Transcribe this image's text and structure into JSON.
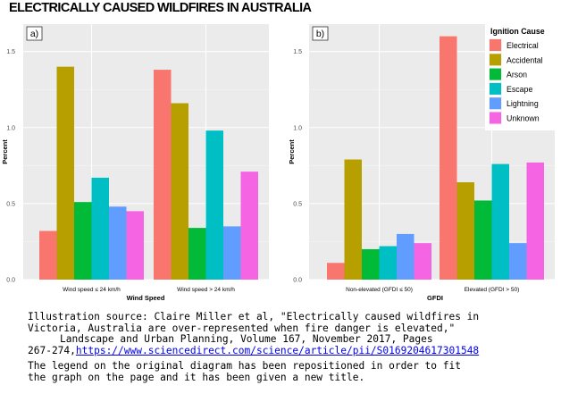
{
  "page": {
    "title": "ELECTRICALLY CAUSED WILDFIRES IN AUSTRALIA"
  },
  "legend": {
    "title": "Ignition Cause",
    "placement": "top-right"
  },
  "chart_data": [
    {
      "type": "bar",
      "panel_label": "a)",
      "title": "",
      "xlabel": "Wind Speed",
      "ylabel": "Percent",
      "ylim": [
        0,
        1.6
      ],
      "yticks": [
        "0.0",
        "0.5",
        "1.0",
        "1.5"
      ],
      "grid": true,
      "categories": [
        "Wind speed ≤ 24 km/h",
        "Wind speed > 24 km/h"
      ],
      "series": [
        {
          "name": "Electrical",
          "color": "#F8766D",
          "values": [
            0.32,
            1.38
          ]
        },
        {
          "name": "Accidental",
          "color": "#B79F00",
          "values": [
            1.4,
            1.16
          ]
        },
        {
          "name": "Arson",
          "color": "#00BA38",
          "values": [
            0.51,
            0.34
          ]
        },
        {
          "name": "Escape",
          "color": "#00BFC4",
          "values": [
            0.67,
            0.98
          ]
        },
        {
          "name": "Lightning",
          "color": "#619CFF",
          "values": [
            0.48,
            0.35
          ]
        },
        {
          "name": "Unknown",
          "color": "#F564E3",
          "values": [
            0.45,
            0.71
          ]
        }
      ]
    },
    {
      "type": "bar",
      "panel_label": "b)",
      "title": "",
      "xlabel": "GFDI",
      "ylabel": "Percent",
      "ylim": [
        0,
        1.6
      ],
      "yticks": [
        "0.0",
        "0.5",
        "1.0",
        "1.5"
      ],
      "grid": true,
      "categories": [
        "Non-elevated (GFDI ≤ 50)",
        "Elevated (GFDI > 50)"
      ],
      "series": [
        {
          "name": "Electrical",
          "color": "#F8766D",
          "values": [
            0.11,
            1.6
          ]
        },
        {
          "name": "Accidental",
          "color": "#B79F00",
          "values": [
            0.79,
            0.64
          ]
        },
        {
          "name": "Arson",
          "color": "#00BA38",
          "values": [
            0.2,
            0.52
          ]
        },
        {
          "name": "Escape",
          "color": "#00BFC4",
          "values": [
            0.22,
            0.76
          ]
        },
        {
          "name": "Lightning",
          "color": "#619CFF",
          "values": [
            0.3,
            0.24
          ]
        },
        {
          "name": "Unknown",
          "color": "#F564E3",
          "values": [
            0.24,
            0.77
          ]
        }
      ]
    }
  ],
  "caption": {
    "line1": "Illustration source: Claire Miller et al, \"Electrically caused wildfires in",
    "line2": "Victoria, Australia are over-represented when fire danger is elevated,\"",
    "line3": "Landscape and Urban Planning, Volume 167, November 2017, Pages",
    "line4_prefix": "267-274,",
    "link": "https://www.sciencedirect.com/science/article/pii/S0169204617301548",
    "note1": "The legend on the original diagram has been repositioned in order to fit",
    "note2": "the graph on the page and it has been given a new title."
  },
  "colors": {
    "panel_background": "#EBEBEB",
    "gridline": "#FFFFFF",
    "legend_key_background": "#F2F2F2"
  }
}
